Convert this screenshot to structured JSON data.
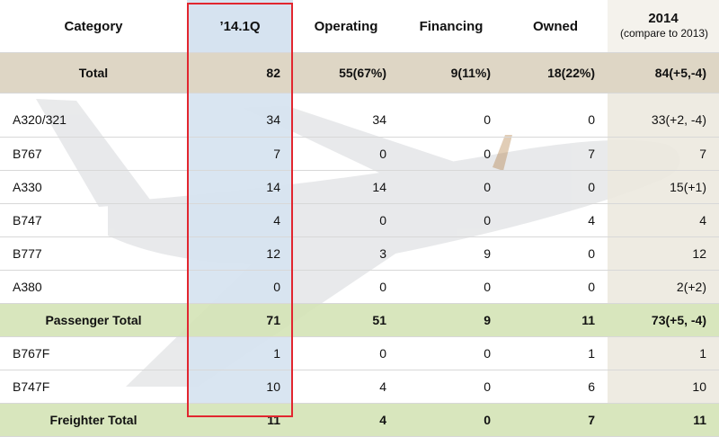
{
  "columns": [
    "Category",
    "’14.1Q",
    "Operating",
    "Financing",
    "Owned",
    "2014",
    "(compare to 2013)"
  ],
  "total": [
    "Total",
    "82",
    "55(67%)",
    "9(11%)",
    "18(22%)",
    "84(+5,-4)"
  ],
  "passenger_rows": [
    [
      "A320/321",
      "34",
      "34",
      "0",
      "0",
      "33(+2, -4)"
    ],
    [
      "B767",
      "7",
      "0",
      "0",
      "7",
      "7"
    ],
    [
      "A330",
      "14",
      "14",
      "0",
      "0",
      "15(+1)"
    ],
    [
      "B747",
      "4",
      "0",
      "0",
      "4",
      "4"
    ],
    [
      "B777",
      "12",
      "3",
      "9",
      "0",
      "12"
    ],
    [
      "A380",
      "0",
      "0",
      "0",
      "0",
      "2(+2)"
    ]
  ],
  "passenger_total": [
    "Passenger Total",
    "71",
    "51",
    "9",
    "11",
    "73(+5, -4)"
  ],
  "freighter_rows": [
    [
      "B767F",
      "1",
      "0",
      "0",
      "1",
      "1"
    ],
    [
      "B747F",
      "10",
      "4",
      "0",
      "6",
      "10"
    ]
  ],
  "freighter_total": [
    "Freighter Total",
    "11",
    "4",
    "0",
    "7",
    "11"
  ],
  "colors": {
    "highlight_border": "#e2262f",
    "q1_column": "#d6e3f0",
    "total_row": "#d5cbb5",
    "subtotal_row": "#d3e2b4"
  }
}
